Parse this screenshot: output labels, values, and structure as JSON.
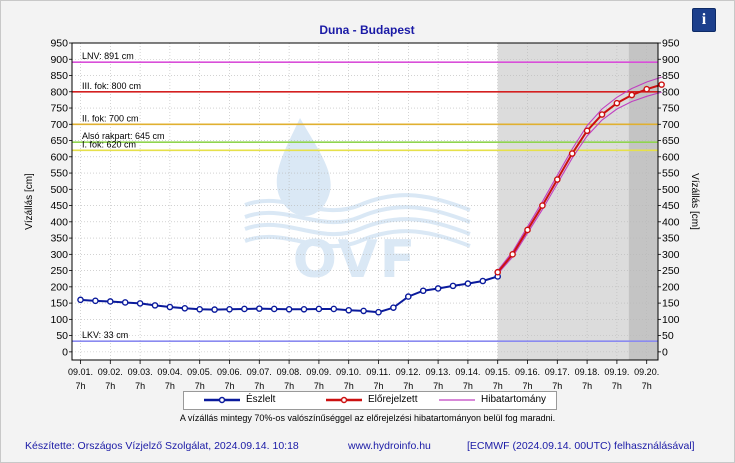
{
  "chart_data": {
    "type": "line",
    "title": "Duna - Budapest",
    "ylabel": "Vízállás [cm]",
    "ylabel_right": "Vízállás [cm]",
    "ylim": [
      -25,
      950
    ],
    "yticks": [
      0,
      50,
      100,
      150,
      200,
      250,
      300,
      350,
      400,
      450,
      500,
      550,
      600,
      650,
      700,
      750,
      800,
      850,
      900,
      950
    ],
    "x_tick_labels": [
      {
        "date": "09.01.",
        "hour": "7h"
      },
      {
        "date": "09.02.",
        "hour": "7h"
      },
      {
        "date": "09.03.",
        "hour": "7h"
      },
      {
        "date": "09.04.",
        "hour": "7h"
      },
      {
        "date": "09.05.",
        "hour": "7h"
      },
      {
        "date": "09.06.",
        "hour": "7h"
      },
      {
        "date": "09.07.",
        "hour": "7h"
      },
      {
        "date": "09.08.",
        "hour": "7h"
      },
      {
        "date": "09.09.",
        "hour": "7h"
      },
      {
        "date": "09.10.",
        "hour": "7h"
      },
      {
        "date": "09.11.",
        "hour": "7h"
      },
      {
        "date": "09.12.",
        "hour": "7h"
      },
      {
        "date": "09.13.",
        "hour": "7h"
      },
      {
        "date": "09.14.",
        "hour": "7h"
      },
      {
        "date": "09.15.",
        "hour": "7h"
      },
      {
        "date": "09.16.",
        "hour": "7h"
      },
      {
        "date": "09.17.",
        "hour": "7h"
      },
      {
        "date": "09.18.",
        "hour": "7h"
      },
      {
        "date": "09.19.",
        "hour": "7h"
      },
      {
        "date": "09.20.",
        "hour": "7h"
      }
    ],
    "reference_lines": [
      {
        "label": "LNV: 891 cm",
        "value": 891,
        "color": "#d94fd9"
      },
      {
        "label": "III. fok: 800 cm",
        "value": 800,
        "color": "#d42020"
      },
      {
        "label": "II. fok: 700 cm",
        "value": 700,
        "color": "#e0b030"
      },
      {
        "label": "Alsó rakpart: 645 cm",
        "value": 645,
        "color": "#8fd44f"
      },
      {
        "label": "I. fok: 620 cm",
        "value": 620,
        "color": "#e6e04a"
      },
      {
        "label": "LKV: 33 cm",
        "value": 33,
        "color": "#8a8af0"
      }
    ],
    "series": [
      {
        "name": "Észlelt",
        "color": "#0a1a9c",
        "x": [
          0,
          0.5,
          1,
          1.5,
          2,
          2.5,
          3,
          3.5,
          4,
          4.5,
          5,
          5.5,
          6,
          6.5,
          7,
          7.5,
          8,
          8.5,
          9,
          9.5,
          10,
          10.5,
          11,
          11.5,
          12,
          12.5,
          13,
          13.5,
          14
        ],
        "values": [
          160,
          157,
          155,
          152,
          149,
          143,
          138,
          134,
          131,
          130,
          131,
          132,
          133,
          132,
          131,
          131,
          132,
          132,
          128,
          126,
          122,
          136,
          170,
          188,
          195,
          203,
          210,
          218,
          232
        ]
      },
      {
        "name": "Előrejelzett",
        "color": "#cc1010",
        "x": [
          14,
          14.5,
          15,
          15.5,
          16,
          16.5,
          17,
          17.5,
          18,
          18.5,
          19,
          19.5
        ],
        "values": [
          245,
          300,
          375,
          450,
          530,
          610,
          680,
          730,
          765,
          790,
          808,
          822
        ]
      },
      {
        "name": "Hibatartomány",
        "color": "#c040c0",
        "x": [
          14,
          14.5,
          15,
          15.5,
          16,
          16.5,
          17,
          17.5,
          18,
          18.5,
          19,
          19.5
        ],
        "upper": [
          250,
          308,
          385,
          462,
          543,
          624,
          696,
          747,
          783,
          810,
          830,
          845
        ],
        "lower": [
          240,
          292,
          365,
          438,
          517,
          596,
          664,
          713,
          747,
          770,
          786,
          799
        ]
      }
    ],
    "forecast_start_x": 14,
    "forecast_dark_start_x": 18.4,
    "legend_position": "bottom",
    "grid": true
  },
  "legend": {
    "items": [
      "Észlelt",
      "Előrejelzett",
      "Hibatartomány"
    ]
  },
  "note": "A vízállás mintegy 70%-os valószínűséggel az előrejelzési hibatartományon belül fog maradni.",
  "footer": {
    "author": "Készítette: Országos Vízjelző Szolgálat, 2024.09.14. 10:18",
    "site": "www.hydroinfo.hu",
    "source": "[ECMWF (2024.09.14. 00UTC) felhasználásával]"
  },
  "watermark": "OVF",
  "info_button": "i"
}
